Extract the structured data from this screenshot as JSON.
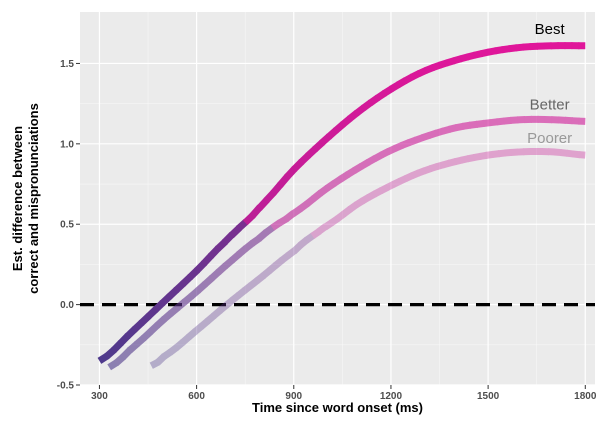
{
  "chart_data": {
    "type": "line",
    "title": "",
    "xlabel": "Time since word onset (ms)",
    "ylabel_lines": [
      "Est. difference between",
      "correct and mispronunciations"
    ],
    "xlim": [
      240,
      1830
    ],
    "ylim": [
      -0.5,
      1.82
    ],
    "x_ticks": [
      300,
      600,
      900,
      1200,
      1500,
      1800
    ],
    "y_ticks": [
      -0.5,
      0.0,
      0.5,
      1.0,
      1.5
    ],
    "y_tick_labels": [
      "-0.5",
      "0.0",
      "0.5",
      "1.0",
      "1.5"
    ],
    "grid": true,
    "panel_background": "#ebebeb",
    "reference_line": {
      "y": 0,
      "style": "dashed",
      "color": "#000000"
    },
    "colors": {
      "low": "#473c8b",
      "high": "#e0169a"
    },
    "series": [
      {
        "name": "Best",
        "opacity": 1.0,
        "label_color": "#000000",
        "x": [
          300,
          400,
          500,
          600,
          700,
          750,
          800,
          900,
          1000,
          1100,
          1200,
          1300,
          1400,
          1500,
          1600,
          1700,
          1800
        ],
        "y": [
          -0.35,
          -0.17,
          0.02,
          0.21,
          0.41,
          0.51,
          0.62,
          0.84,
          1.03,
          1.2,
          1.34,
          1.45,
          1.52,
          1.57,
          1.6,
          1.61,
          1.61
        ],
        "color_switch_x": 750
      },
      {
        "name": "Better",
        "opacity": 0.6,
        "label_color": "#666666",
        "x": [
          330,
          400,
          500,
          600,
          700,
          800,
          850,
          900,
          1000,
          1100,
          1200,
          1300,
          1400,
          1500,
          1600,
          1700,
          1800
        ],
        "y": [
          -0.39,
          -0.27,
          -0.09,
          0.08,
          0.26,
          0.42,
          0.5,
          0.57,
          0.72,
          0.85,
          0.96,
          1.04,
          1.1,
          1.13,
          1.15,
          1.15,
          1.14
        ],
        "color_switch_x": 840
      },
      {
        "name": "Poorer",
        "opacity": 0.35,
        "label_color": "#999999",
        "x": [
          460,
          500,
          600,
          700,
          800,
          900,
          960,
          1000,
          1100,
          1200,
          1300,
          1400,
          1500,
          1600,
          1700,
          1800
        ],
        "y": [
          -0.38,
          -0.32,
          -0.16,
          0.01,
          0.17,
          0.33,
          0.43,
          0.49,
          0.63,
          0.74,
          0.83,
          0.89,
          0.93,
          0.95,
          0.95,
          0.93
        ],
        "color_switch_x": 960
      }
    ]
  }
}
